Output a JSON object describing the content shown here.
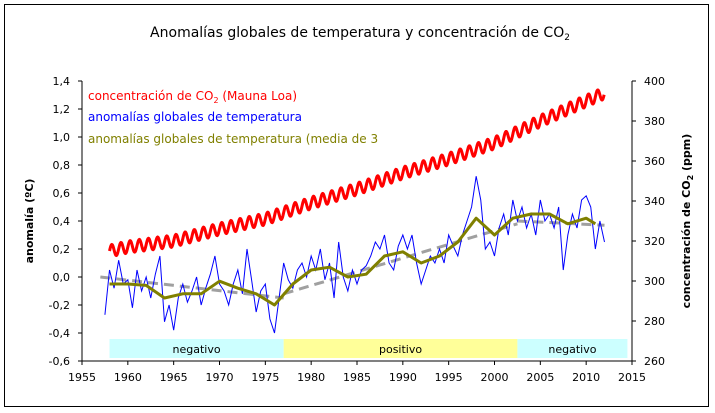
{
  "chart_data": {
    "type": "line",
    "title": "Anomalías globales de temperatura y concentración de CO",
    "title_sub": "2",
    "ylabel": "anomalía (ºC)",
    "y2label": "concentración de CO",
    "y2label_sub": "2",
    "y2label_unit": " (ppm)",
    "xlim": [
      1955,
      2015
    ],
    "ylim": [
      -0.6,
      1.4
    ],
    "y2lim": [
      260,
      400
    ],
    "xticks": [
      "1955",
      "1960",
      "1965",
      "1970",
      "1975",
      "1980",
      "1985",
      "1990",
      "1995",
      "2000",
      "2005",
      "2010",
      "2015"
    ],
    "yticks": [
      "-0,6",
      "-0,4",
      "-0,2",
      "0,0",
      "0,2",
      "0,4",
      "0,6",
      "0,8",
      "1,0",
      "1,2",
      "1,4"
    ],
    "y2ticks": [
      "260",
      "280",
      "300",
      "320",
      "340",
      "360",
      "380",
      "400"
    ],
    "grid": false,
    "legend_placement": "top-left",
    "bands": [
      {
        "label": "negativo",
        "from": 1958,
        "to": 1977,
        "color": "#ccffff"
      },
      {
        "label": "positivo",
        "from": 1977,
        "to": 2002.5,
        "color": "#ffff99"
      },
      {
        "label": "negativo",
        "from": 2002.5,
        "to": 2014.5,
        "color": "#ccffff"
      }
    ],
    "series": [
      {
        "name": "concentración de CO",
        "name_sub": "2",
        "name_suffix": " (Mauna Loa)",
        "axis": "right",
        "color": "#ff0000",
        "seasonal_amplitude_ppm": 3,
        "x": [
          1958,
          1960,
          1965,
          1970,
          1975,
          1980,
          1985,
          1990,
          1995,
          2000,
          2005,
          2010,
          2012
        ],
        "y": [
          315,
          317,
          320,
          326,
          331,
          339,
          346,
          354,
          361,
          369,
          380,
          390,
          394
        ]
      },
      {
        "name": "anomalías globales de temperatura",
        "axis": "left",
        "color": "#0000ff",
        "x": [
          1957.5,
          1958,
          1958.5,
          1959,
          1959.5,
          1960,
          1960.5,
          1961,
          1961.5,
          1962,
          1962.5,
          1963,
          1963.5,
          1964,
          1964.5,
          1965,
          1965.5,
          1966,
          1966.5,
          1967,
          1967.5,
          1968,
          1968.5,
          1969,
          1969.5,
          1970,
          1970.5,
          1971,
          1971.5,
          1972,
          1972.5,
          1973,
          1973.5,
          1974,
          1974.5,
          1975,
          1975.5,
          1976,
          1976.5,
          1977,
          1977.5,
          1978,
          1978.5,
          1979,
          1979.5,
          1980,
          1980.5,
          1981,
          1981.5,
          1982,
          1982.5,
          1983,
          1983.5,
          1984,
          1984.5,
          1985,
          1985.5,
          1986,
          1986.5,
          1987,
          1987.5,
          1988,
          1988.5,
          1989,
          1989.5,
          1990,
          1990.5,
          1991,
          1991.5,
          1992,
          1992.5,
          1993,
          1993.5,
          1994,
          1994.5,
          1995,
          1995.5,
          1996,
          1996.5,
          1997,
          1997.5,
          1998,
          1998.5,
          1999,
          1999.5,
          2000,
          2000.5,
          2001,
          2001.5,
          2002,
          2002.5,
          2003,
          2003.5,
          2004,
          2004.5,
          2005,
          2005.5,
          2006,
          2006.5,
          2007,
          2007.5,
          2008,
          2008.5,
          2009,
          2009.5,
          2010,
          2010.5,
          2011,
          2011.5,
          2012
        ],
        "y": [
          -0.27,
          0.05,
          -0.08,
          0.12,
          -0.05,
          -0.02,
          -0.22,
          0.05,
          -0.1,
          0.0,
          -0.15,
          0.02,
          0.15,
          -0.32,
          -0.2,
          -0.38,
          -0.15,
          -0.05,
          -0.18,
          -0.1,
          0.0,
          -0.2,
          -0.08,
          0.02,
          0.15,
          -0.05,
          -0.1,
          -0.2,
          -0.05,
          0.05,
          -0.12,
          0.2,
          -0.02,
          -0.25,
          -0.1,
          -0.05,
          -0.3,
          -0.4,
          -0.15,
          0.1,
          -0.02,
          -0.08,
          0.05,
          0.1,
          0.0,
          0.15,
          0.05,
          0.2,
          -0.02,
          0.1,
          -0.15,
          0.25,
          0.0,
          -0.1,
          0.05,
          -0.05,
          0.05,
          0.08,
          0.15,
          0.25,
          0.2,
          0.3,
          0.1,
          0.05,
          0.22,
          0.3,
          0.2,
          0.3,
          0.1,
          -0.05,
          0.05,
          0.15,
          0.1,
          0.2,
          0.1,
          0.3,
          0.22,
          0.15,
          0.3,
          0.4,
          0.5,
          0.72,
          0.55,
          0.2,
          0.25,
          0.15,
          0.35,
          0.45,
          0.3,
          0.55,
          0.4,
          0.5,
          0.35,
          0.45,
          0.3,
          0.55,
          0.4,
          0.45,
          0.35,
          0.5,
          0.05,
          0.3,
          0.45,
          0.35,
          0.55,
          0.58,
          0.5,
          0.2,
          0.4,
          0.25
        ]
      },
      {
        "name": "anomalías globales de temperatura (media de 3",
        "axis": "left",
        "color": "#808000",
        "x": [
          1958,
          1960,
          1962,
          1964,
          1966,
          1968,
          1970,
          1972,
          1974,
          1976,
          1978,
          1980,
          1982,
          1984,
          1986,
          1988,
          1990,
          1992,
          1994,
          1996,
          1998,
          2000,
          2002,
          2004,
          2006,
          2008,
          2010,
          2011
        ],
        "y": [
          -0.05,
          -0.05,
          -0.06,
          -0.15,
          -0.12,
          -0.12,
          -0.03,
          -0.08,
          -0.12,
          -0.2,
          -0.05,
          0.05,
          0.07,
          0.0,
          0.02,
          0.15,
          0.18,
          0.1,
          0.15,
          0.25,
          0.42,
          0.3,
          0.42,
          0.45,
          0.45,
          0.38,
          0.42,
          0.38
        ]
      },
      {
        "axis": "left",
        "color": "#a0a0a0",
        "style": "dashed",
        "segments": [
          {
            "x": [
              1957,
              1977
            ],
            "y": [
              0.0,
              -0.15
            ]
          },
          {
            "x": [
              1977,
              2002.5
            ],
            "y": [
              -0.12,
              0.38
            ]
          },
          {
            "x": [
              2002.5,
              2012
            ],
            "y": [
              0.4,
              0.37
            ]
          }
        ]
      }
    ]
  }
}
